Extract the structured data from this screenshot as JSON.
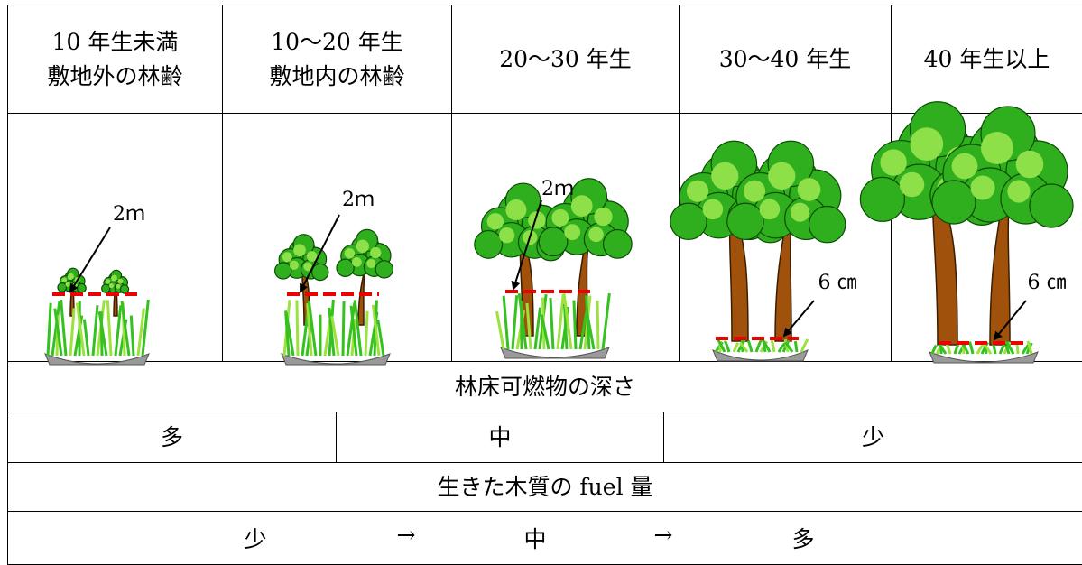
{
  "table": {
    "headers": [
      [
        "10 年生未満",
        "敷地外の林齢"
      ],
      [
        "10～20 年生",
        "敷地内の林齢"
      ],
      [
        "20～30 年生"
      ],
      [
        "30～40 年生"
      ],
      [
        "40 年生以上"
      ]
    ],
    "annotations": [
      "2ｍ",
      "2ｍ",
      "2ｍ",
      "6 ㎝",
      "6 ㎝"
    ],
    "rows": [
      [
        "林床可燃物の深さ"
      ],
      [
        "多",
        "中",
        "少"
      ],
      [
        "生きた木質の fuel 量"
      ],
      [
        "少",
        "→",
        "中",
        "→",
        "多"
      ]
    ]
  }
}
